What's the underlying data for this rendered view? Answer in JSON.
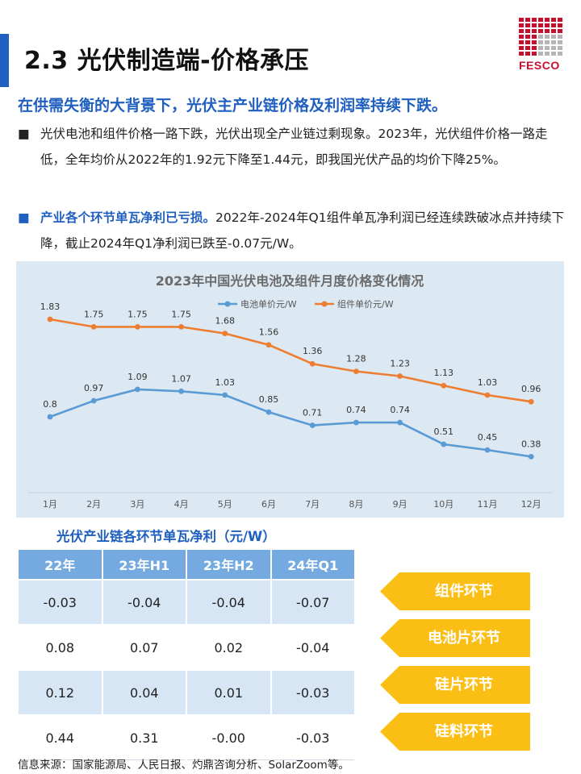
{
  "header": {
    "title": "2.3 光伏制造端-价格承压",
    "logo_text": "FESCO"
  },
  "subtitle": "在供需失衡的大背景下，光伏主产业链价格及利润率持续下跌。",
  "bullets": {
    "b1_mark": "■",
    "b1_text": "光伏电池和组件价格一路下跌，光伏出现全产业链过剩现象。2023年，光伏组件价格一路走低，全年均价从2022年的1.92元下降至1.44元，即我国光伏产品的均价下降25%。",
    "b2_mark": "■",
    "b2_strong": "产业各个环节单瓦净利已亏损。",
    "b2_text": "2022年-2024年Q1组件单瓦净利润已经连续跌破冰点并持续下降，截止2024年Q1净利润已跌至-0.07元/W。"
  },
  "chart_data": {
    "type": "line",
    "title": "2023年中国光伏电池及组件月度价格变化情况",
    "categories": [
      "1月",
      "2月",
      "3月",
      "4月",
      "5月",
      "6月",
      "7月",
      "8月",
      "9月",
      "10月",
      "11月",
      "12月"
    ],
    "series": [
      {
        "name": "电池单价元/W",
        "color": "#5b9bd5",
        "values": [
          0.8,
          0.97,
          1.09,
          1.07,
          1.03,
          0.85,
          0.71,
          0.74,
          0.74,
          0.51,
          0.45,
          0.38
        ]
      },
      {
        "name": "组件单价元/W",
        "color": "#ed7d31",
        "values": [
          1.83,
          1.75,
          1.75,
          1.75,
          1.68,
          1.56,
          1.36,
          1.28,
          1.23,
          1.13,
          1.03,
          0.96
        ]
      }
    ],
    "ylim": [
      0,
      2.0
    ],
    "grid": false,
    "legend": "top-center",
    "data_labels": true
  },
  "profit_table": {
    "title": "光伏产业链各环节单瓦净利（元/W）",
    "headers": [
      "22年",
      "23年H1",
      "23年H2",
      "24年Q1"
    ],
    "rows": [
      {
        "segment": "组件环节",
        "values": [
          "-0.03",
          "-0.04",
          "-0.04",
          "-0.07"
        ]
      },
      {
        "segment": "电池片环节",
        "values": [
          "0.08",
          "0.07",
          "0.02",
          "-0.04"
        ]
      },
      {
        "segment": "硅片环节",
        "values": [
          "0.12",
          "0.04",
          "0.01",
          "-0.03"
        ]
      },
      {
        "segment": "硅料环节",
        "values": [
          "0.44",
          "0.31",
          "-0.00",
          "-0.03"
        ]
      }
    ]
  },
  "source": "信息来源：国家能源局、人民日报、灼鼎咨询分析、SolarZoom等。",
  "colors": {
    "brand_blue": "#1f5fbf",
    "logo_red": "#c8102e",
    "arrow_yellow": "#fbbe15",
    "table_header": "#74aae0"
  }
}
